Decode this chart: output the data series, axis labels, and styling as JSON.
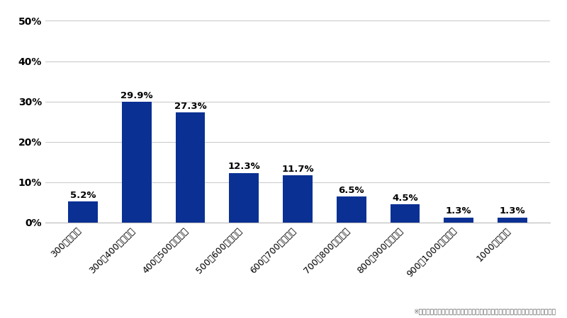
{
  "categories": [
    "300万円未満",
    "300～400万円未満",
    "400～500万円未満",
    "500～600万円未満",
    "600～700万円未満",
    "700～800万円未満",
    "800～900万円未満",
    "900～1000万円未満",
    "1000万円以上"
  ],
  "values": [
    5.2,
    29.9,
    27.3,
    12.3,
    11.7,
    6.5,
    4.5,
    1.3,
    1.3
  ],
  "bar_color": "#0a3094",
  "background_color": "#ffffff",
  "yticks": [
    0,
    10,
    20,
    30,
    40,
    50
  ],
  "ylim": [
    0,
    52
  ],
  "footnote": "※記載されているすべての情報の著作権は株式会社マスメディアンに帰属します。",
  "label_fontsize": 9.5,
  "tick_fontsize": 10,
  "xtick_fontsize": 9,
  "footnote_fontsize": 6.5,
  "bar_width": 0.55
}
